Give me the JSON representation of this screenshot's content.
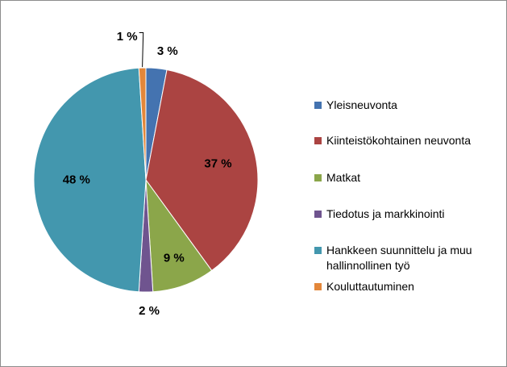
{
  "chart_data": {
    "type": "pie",
    "title": "",
    "slices": [
      {
        "label": "Yleisneuvonta",
        "value": 3,
        "display": "3 %",
        "color": "#4473b0"
      },
      {
        "label": "Kiinteistökohtainen neuvonta",
        "value": 37,
        "display": "37 %",
        "color": "#ab4442"
      },
      {
        "label": "Matkat",
        "value": 9,
        "display": "9 %",
        "color": "#8ba64a"
      },
      {
        "label": "Tiedotus ja markkinointi",
        "value": 2,
        "display": "2 %",
        "color": "#6f548f"
      },
      {
        "label": "Hankkeen suunnittelu ja muu hallinnollinen työ",
        "value": 48,
        "display": "48 %",
        "color": "#4397ae"
      },
      {
        "label": "Kouluttautuminen",
        "value": 1,
        "display": "1 %",
        "color": "#e3873a"
      }
    ],
    "legend_position": "right",
    "start_angle": "12 o'clock",
    "direction": "clockwise"
  }
}
